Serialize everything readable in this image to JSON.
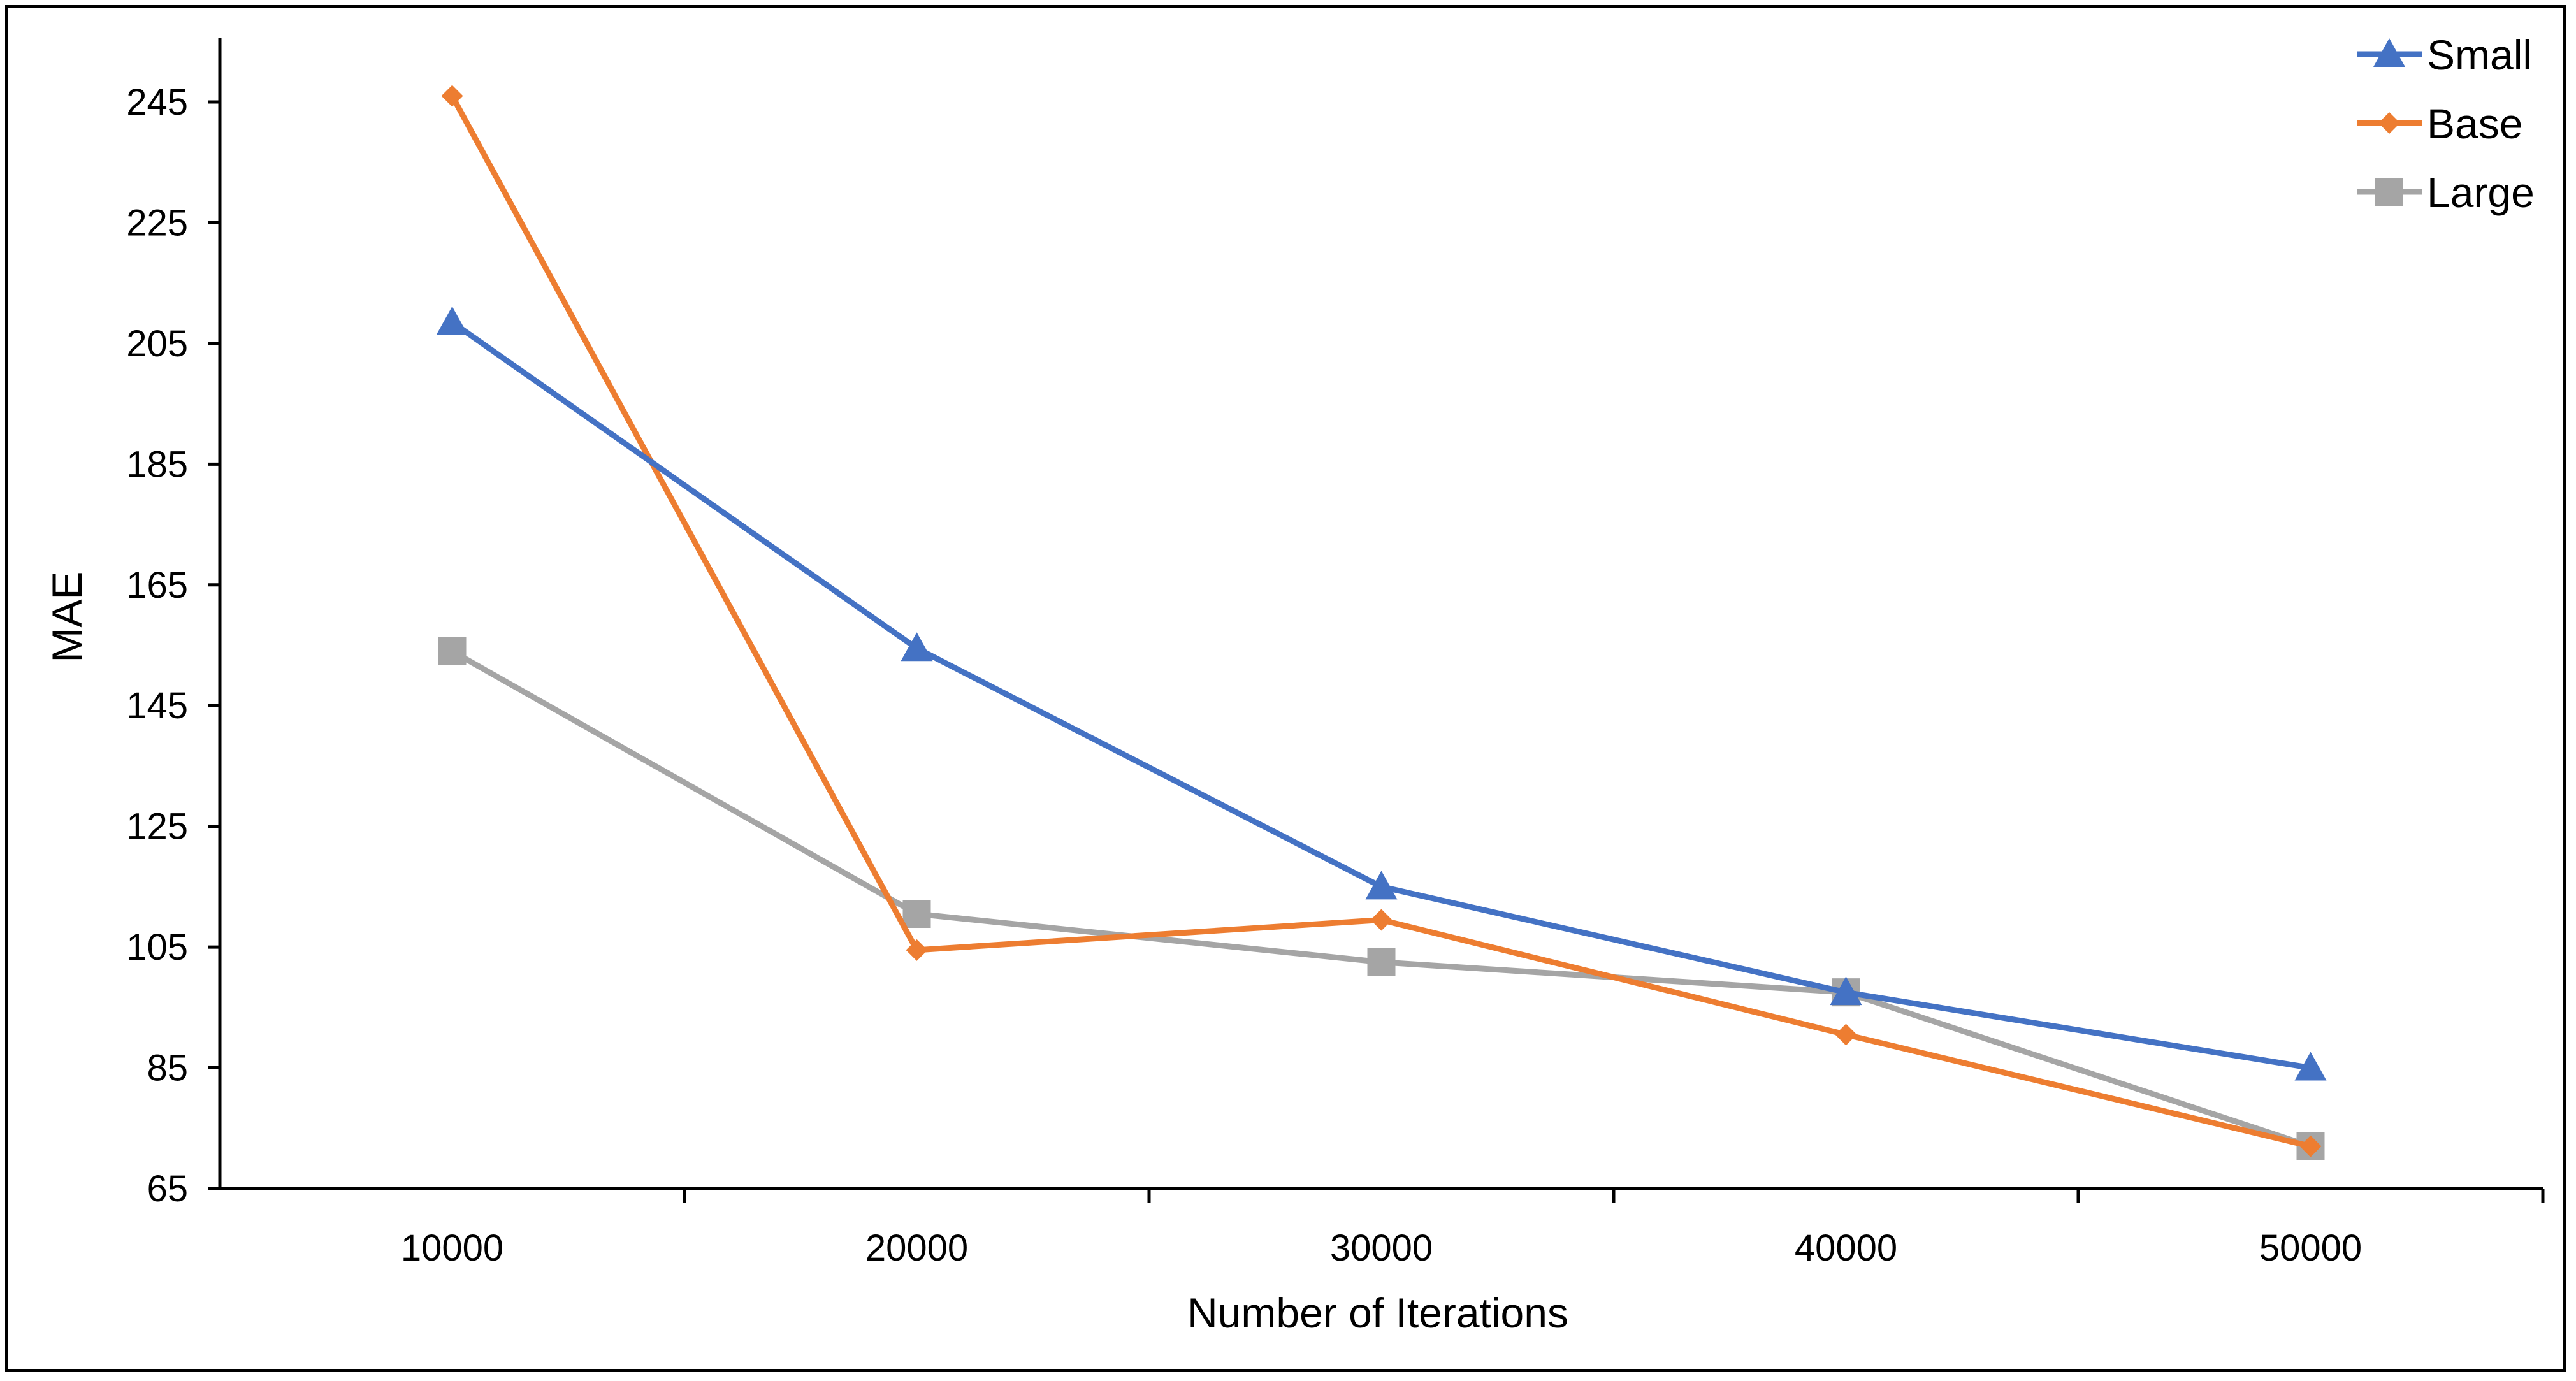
{
  "chart_data": {
    "type": "line",
    "title": "",
    "xlabel": "Number of Iterations",
    "ylabel": "MAE",
    "categories": [
      "10000",
      "20000",
      "30000",
      "40000",
      "50000"
    ],
    "ylim": [
      65,
      255
    ],
    "yticks": [
      65,
      85,
      105,
      125,
      145,
      165,
      185,
      205,
      225,
      245
    ],
    "grid": false,
    "legend_position": "top-right",
    "series": [
      {
        "name": "Small",
        "color": "#4472C4",
        "marker": "triangle",
        "values": [
          208.5,
          154.5,
          115,
          97.5,
          85
        ]
      },
      {
        "name": "Base",
        "color": "#ED7D31",
        "marker": "diamond",
        "values": [
          246,
          104.5,
          109.5,
          90.5,
          72
        ]
      },
      {
        "name": "Large",
        "color": "#A5A5A5",
        "marker": "square",
        "values": [
          154,
          110.5,
          102.5,
          97.5,
          72
        ]
      }
    ]
  }
}
